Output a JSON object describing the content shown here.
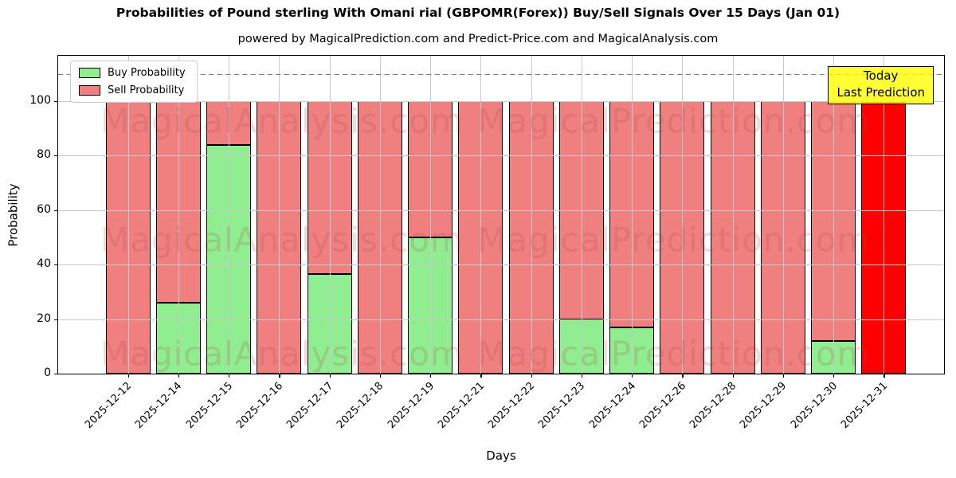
{
  "title": "Probabilities of Pound sterling With Omani rial (GBPOMR(Forex)) Buy/Sell Signals Over 15 Days (Jan 01)",
  "subtitle": "powered by MagicalPrediction.com and Predict-Price.com and MagicalAnalysis.com",
  "axes": {
    "xlabel": "Days",
    "ylabel": "Probability"
  },
  "legend": {
    "buy_label": "Buy Probability",
    "sell_label": "Sell Probability"
  },
  "annotation_box": {
    "line1": "Today",
    "line2": "Last Prediction"
  },
  "watermarks": {
    "texts": [
      "MagicalAnalysis.com",
      "MagicalPrediction.com"
    ]
  },
  "colors": {
    "buy": "#90EE90",
    "sell": "#F08080",
    "final_sell": "#FF0000",
    "grid": "#c9c9c9",
    "dashed_line": "#7f7f7f",
    "annotation_bg": "#ffff00",
    "watermark": "#a64d4d"
  },
  "chart_data": {
    "type": "bar",
    "stacked": true,
    "title": "Probabilities of Pound sterling With Omani rial (GBPOMR(Forex)) Buy/Sell Signals Over 15 Days (Jan 01)",
    "xlabel": "Days",
    "ylabel": "Probability",
    "categories": [
      "2025-12-12",
      "2025-12-14",
      "2025-12-15",
      "2025-12-16",
      "2025-12-17",
      "2025-12-18",
      "2025-12-19",
      "2025-12-21",
      "2025-12-22",
      "2025-12-23",
      "2025-12-24",
      "2025-12-26",
      "2025-12-28",
      "2025-12-29",
      "2025-12-30",
      "2025-12-31"
    ],
    "series": [
      {
        "name": "Buy Probability",
        "color": "#90EE90",
        "values": [
          0,
          26,
          84,
          0,
          36.5,
          0,
          50,
          0,
          0,
          20,
          17,
          0,
          0,
          0,
          12,
          0
        ]
      },
      {
        "name": "Sell Probability",
        "color": "#F08080",
        "values": [
          100,
          74,
          16,
          100,
          63.5,
          100,
          50,
          100,
          100,
          80,
          83,
          100,
          100,
          100,
          88,
          100
        ]
      }
    ],
    "sell_bar_colors": [
      "#F08080",
      "#F08080",
      "#F08080",
      "#F08080",
      "#F08080",
      "#F08080",
      "#F08080",
      "#F08080",
      "#F08080",
      "#F08080",
      "#F08080",
      "#F08080",
      "#F08080",
      "#F08080",
      "#F08080",
      "#FF0000"
    ],
    "yticks": [
      0,
      20,
      40,
      60,
      80,
      100
    ],
    "ylim": [
      0,
      116.6
    ],
    "dashed_line_y": 110,
    "grid": true,
    "legend_position": "upper left",
    "annotation": "Today / Last Prediction on last bar"
  }
}
